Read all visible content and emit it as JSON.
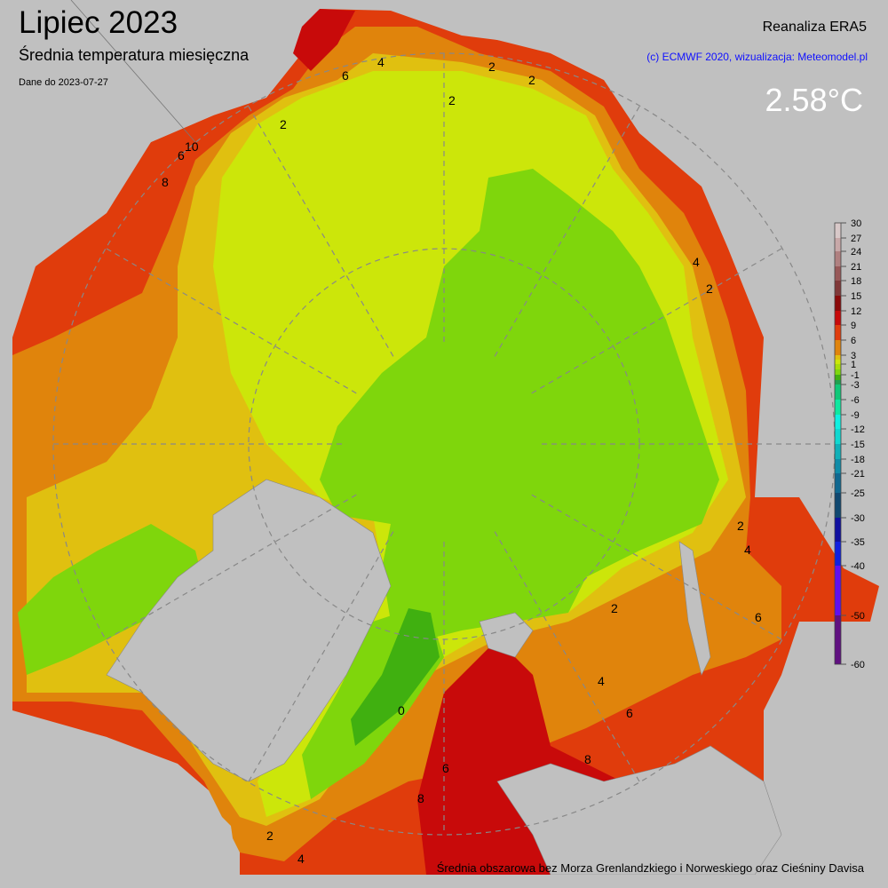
{
  "header": {
    "title": "Lipiec 2023",
    "subtitle": "Średnia temperatura miesięczna",
    "date_note": "Dane do 2023-07-27",
    "source": "Reanaliza ERA5",
    "credit": "(c) ECMWF 2020, wizualizacja: Meteomodel.pl",
    "credit_color": "#1010ff",
    "area_mean": "2.58°C"
  },
  "footnote": "Średnia obszarowa bez Morza Grenlandzkiego i Norweskiego oraz Cieśniny Davisa",
  "colorbar": {
    "unit": "°C",
    "ticks": [
      "30",
      "27",
      "24",
      "21",
      "18",
      "15",
      "12",
      "9",
      "6",
      "3",
      "1",
      "-1",
      "-3",
      "-6",
      "-9",
      "-12",
      "-15",
      "-18",
      "-21",
      "-25",
      "-30",
      "-35",
      "-40",
      "-50",
      "-60"
    ],
    "band_colors": [
      "#d8c8c8",
      "#c8a8a8",
      "#b08080",
      "#985858",
      "#803838",
      "#8b0a0a",
      "#c80a0a",
      "#e03c0c",
      "#e0840c",
      "#e0c010",
      "#cce60a",
      "#a8dc0a",
      "#7fd60c",
      "#40b010",
      "#20a050",
      "#10c878",
      "#10e8a0",
      "#10f0e0",
      "#10d8d0",
      "#10b0b8",
      "#108ca8",
      "#106890",
      "#104870",
      "#1010a0",
      "#1020e0",
      "#6010f0",
      "#601080"
    ]
  },
  "map": {
    "land_color": "#c0c0c0",
    "field_colors": {
      "green_dark": "#40b010",
      "green": "#7fd60c",
      "yellow_green": "#cce60a",
      "yellow": "#e0c010",
      "orange": "#e0840c",
      "orange_red": "#e03c0c",
      "red": "#c80a0a",
      "dark_red": "#8b0a0a"
    },
    "contour_labels": [
      "2",
      "2",
      "2",
      "2",
      "2",
      "4",
      "6",
      "4",
      "6",
      "8",
      "10",
      "2",
      "4",
      "6",
      "8",
      "0",
      "2",
      "4",
      "6",
      "8",
      "6",
      "2",
      "4"
    ]
  }
}
